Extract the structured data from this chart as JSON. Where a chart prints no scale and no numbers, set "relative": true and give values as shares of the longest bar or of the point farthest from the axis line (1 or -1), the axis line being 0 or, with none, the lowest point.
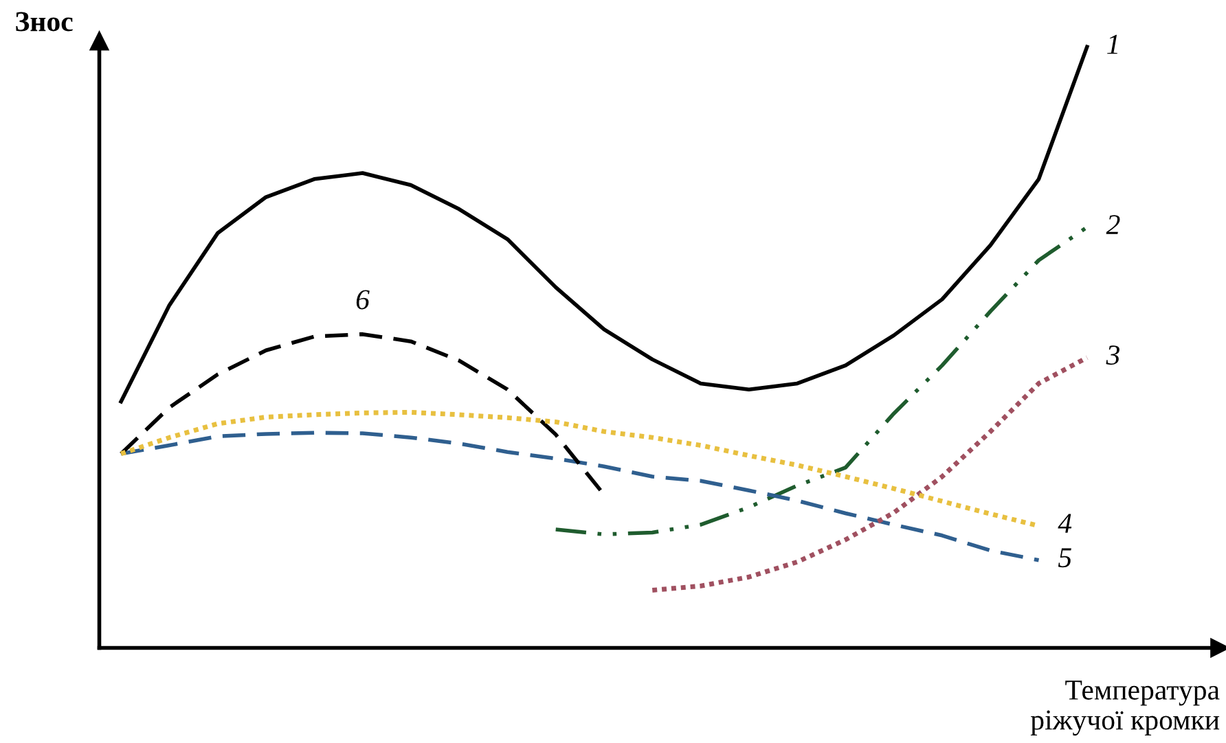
{
  "chart_data": {
    "type": "line",
    "relative": true,
    "ylabel": "Знос",
    "xlabel": "Температура\nріжучої кромки",
    "tick_labels": false,
    "categories": [
      null,
      null,
      null,
      null,
      null,
      null,
      null,
      null,
      null,
      null,
      null,
      null,
      null,
      null,
      null,
      null,
      null,
      null,
      null,
      null,
      null
    ],
    "series": [
      {
        "name": "1",
        "color": "#000000",
        "line_style": "solid",
        "values": [
          0.41,
          0.57,
          0.69,
          0.75,
          0.78,
          0.79,
          0.77,
          0.73,
          0.68,
          0.6,
          0.53,
          0.48,
          0.44,
          0.43,
          0.44,
          0.47,
          0.52,
          0.58,
          0.67,
          0.78,
          1.0
        ]
      },
      {
        "name": "2",
        "color": "#1f5c2e",
        "line_style": "dashdot",
        "values": [
          null,
          null,
          null,
          null,
          null,
          null,
          null,
          null,
          null,
          0.197,
          0.189,
          0.192,
          0.205,
          0.234,
          0.27,
          0.3,
          0.39,
          0.47,
          0.56,
          0.645,
          0.7
        ]
      },
      {
        "name": "3",
        "color": "#a05060",
        "line_style": "dotted",
        "values": [
          null,
          null,
          null,
          null,
          null,
          null,
          null,
          null,
          null,
          null,
          null,
          0.096,
          0.103,
          0.118,
          0.143,
          0.18,
          0.225,
          0.285,
          0.36,
          0.44,
          0.483
        ]
      },
      {
        "name": "4",
        "color": "#e8c040",
        "line_style": "dotted",
        "values": [
          0.323,
          0.35,
          0.373,
          0.384,
          0.388,
          0.391,
          0.392,
          0.388,
          0.383,
          0.376,
          0.36,
          0.35,
          0.337,
          0.32,
          0.304,
          0.285,
          0.265,
          0.244,
          0.223,
          0.203,
          null
        ]
      },
      {
        "name": "5",
        "color": "#2f5f8f",
        "line_style": "dashed",
        "values": [
          0.323,
          0.337,
          0.352,
          0.356,
          0.358,
          0.357,
          0.35,
          0.34,
          0.326,
          0.315,
          0.302,
          0.285,
          0.278,
          0.262,
          0.245,
          0.224,
          0.205,
          0.187,
          0.162,
          0.146,
          null
        ]
      },
      {
        "name": "6",
        "color": "#000000",
        "line_style": "dashed",
        "values": [
          0.323,
          0.4,
          0.455,
          0.495,
          0.518,
          0.522,
          0.51,
          0.478,
          0.43,
          0.355,
          0.255,
          null,
          null,
          null,
          null,
          null,
          null,
          null,
          null,
          null,
          null
        ]
      }
    ]
  }
}
